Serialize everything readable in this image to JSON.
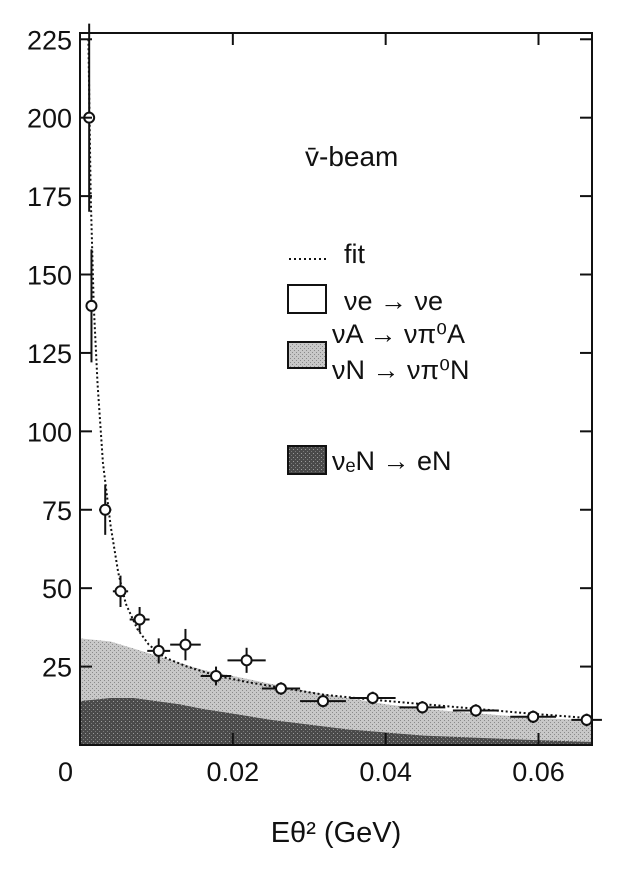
{
  "chart_data": {
    "type": "area",
    "annotation": "v̄-beam",
    "xlabel": "Eθ²",
    "xlabel_unit": "(GeV)",
    "xlim": [
      0,
      0.067
    ],
    "ylim": [
      0,
      227
    ],
    "xticks": [
      0,
      0.02,
      0.04,
      0.06
    ],
    "xtick_labels": [
      "0",
      "0.02",
      "0.04",
      "0.06"
    ],
    "yticks": [
      25,
      50,
      75,
      100,
      125,
      150,
      175,
      200,
      225
    ],
    "ytick_labels": [
      "25",
      "50",
      "75",
      "100",
      "125",
      "150",
      "175",
      "200",
      "225"
    ],
    "legend": {
      "placement": "center-right",
      "entries": [
        {
          "key": "fit",
          "label": "fit"
        },
        {
          "key": "ve",
          "label": "νe → νe"
        },
        {
          "key": "pi0",
          "label": "νA → νπ⁰A",
          "label2": "νN → νπ⁰N"
        },
        {
          "key": "veN",
          "label": "νₑN → eN"
        }
      ]
    },
    "data_points": [
      {
        "x": 0.0012,
        "y": 200,
        "xerr": 0.0005,
        "yerr": 30
      },
      {
        "x": 0.0015,
        "y": 140,
        "xerr": 0.0005,
        "yerr": 18
      },
      {
        "x": 0.0033,
        "y": 75,
        "xerr": 0.0008,
        "yerr": 8
      },
      {
        "x": 0.0053,
        "y": 49,
        "xerr": 0.001,
        "yerr": 5
      },
      {
        "x": 0.0078,
        "y": 40,
        "xerr": 0.0013,
        "yerr": 4
      },
      {
        "x": 0.0103,
        "y": 30,
        "xerr": 0.0015,
        "yerr": 4
      },
      {
        "x": 0.0138,
        "y": 32,
        "xerr": 0.002,
        "yerr": 5
      },
      {
        "x": 0.0178,
        "y": 22,
        "xerr": 0.002,
        "yerr": 3
      },
      {
        "x": 0.0218,
        "y": 27,
        "xerr": 0.0025,
        "yerr": 4
      },
      {
        "x": 0.0263,
        "y": 18,
        "xerr": 0.0025,
        "yerr": 2
      },
      {
        "x": 0.0318,
        "y": 14,
        "xerr": 0.003,
        "yerr": 2
      },
      {
        "x": 0.0383,
        "y": 15,
        "xerr": 0.003,
        "yerr": 2
      },
      {
        "x": 0.0448,
        "y": 12,
        "xerr": 0.003,
        "yerr": 2
      },
      {
        "x": 0.0518,
        "y": 11,
        "xerr": 0.003,
        "yerr": 2
      },
      {
        "x": 0.0593,
        "y": 9,
        "xerr": 0.003,
        "yerr": 2
      },
      {
        "x": 0.0663,
        "y": 8,
        "xerr": 0.002,
        "yerr": 2
      }
    ],
    "fit": {
      "x": [
        0.0011,
        0.0014,
        0.0018,
        0.0023,
        0.003,
        0.004,
        0.005,
        0.006,
        0.0075,
        0.009,
        0.011,
        0.014,
        0.018,
        0.022,
        0.027,
        0.032,
        0.038,
        0.045,
        0.052,
        0.059,
        0.067
      ],
      "y": [
        225,
        175,
        140,
        115,
        90,
        70,
        55,
        45,
        37,
        32,
        28,
        25,
        22,
        20,
        18,
        16,
        14.5,
        13,
        11.5,
        10,
        8.5
      ]
    },
    "areas": {
      "pi0_plus_veN": {
        "x": [
          0,
          0.004,
          0.008,
          0.012,
          0.016,
          0.02,
          0.025,
          0.03,
          0.035,
          0.04,
          0.045,
          0.05,
          0.055,
          0.06,
          0.067
        ],
        "y": [
          34,
          33,
          30,
          27,
          24,
          22,
          19.5,
          17,
          15,
          13,
          11.5,
          10.5,
          9.5,
          8.5,
          8
        ]
      },
      "veN": {
        "x": [
          0,
          0.004,
          0.007,
          0.01,
          0.013,
          0.016,
          0.02,
          0.025,
          0.03,
          0.035,
          0.04,
          0.045,
          0.05,
          0.055,
          0.06,
          0.067
        ],
        "y": [
          14,
          15,
          15,
          14,
          13,
          11.5,
          10,
          8,
          6.5,
          5,
          4,
          3,
          2.5,
          2,
          1.5,
          1
        ]
      }
    },
    "colors": {
      "pi0_fill": "#b9b9b9",
      "veN_fill": "#5f5f5f",
      "ve_fill": "#ffffff",
      "ink": "#111111"
    }
  }
}
